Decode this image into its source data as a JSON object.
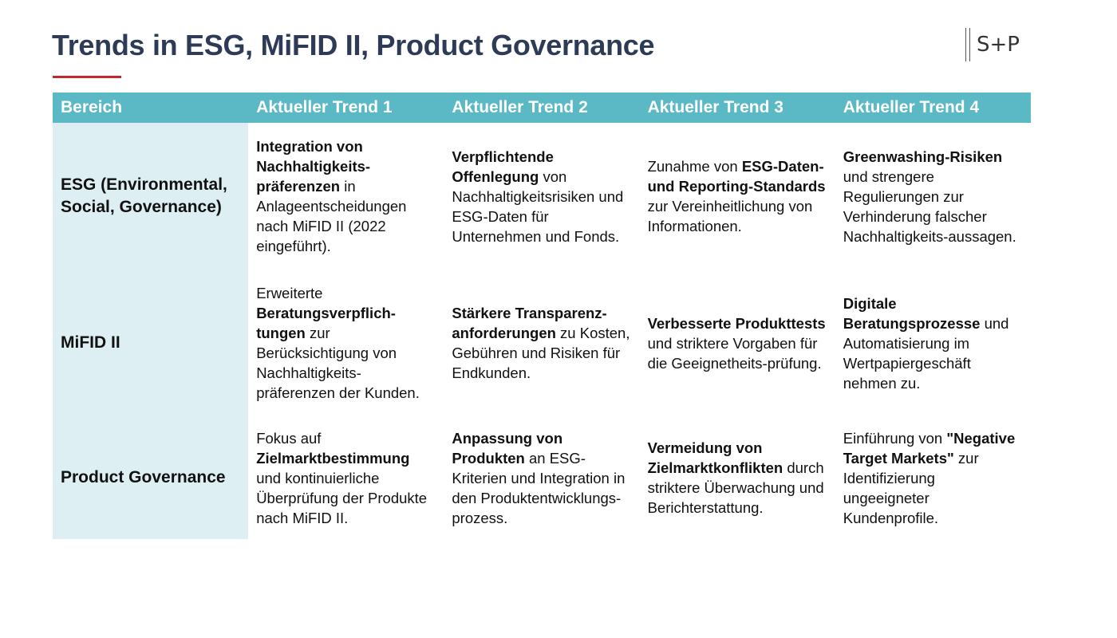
{
  "title": "Trends in ESG, MiFID II, Product Governance",
  "logo": "S+P",
  "colors": {
    "title": "#2e3b57",
    "accent_underline": "#c0282d",
    "header_bg": "#5bb8c5",
    "area_bg": "#deeff3"
  },
  "table": {
    "headers": [
      "Bereich",
      "Aktueller Trend 1",
      "Aktueller Trend 2",
      "Aktueller Trend 3",
      "Aktueller Trend 4"
    ],
    "rows": [
      {
        "area": "ESG (Environmental, Social, Governance)",
        "trends": [
          {
            "bold": "Integration von Nachhaltigkeits-präferenzen",
            "text": " in Anlageentscheidungen nach MiFID II (2022 eingeführt)."
          },
          {
            "bold": "Verpflichtende Offenlegung",
            "text": " von Nachhaltigkeitsrisiken und ESG-Daten für Unternehmen und Fonds."
          },
          {
            "pre": "Zunahme von ",
            "bold": "ESG-Daten- und Reporting-Standards",
            "text": " zur Vereinheitlichung von Informationen."
          },
          {
            "bold": "Greenwashing-Risiken",
            "text": " und strengere Regulierungen zur Verhinderung falscher Nachhaltigkeits-aussagen."
          }
        ]
      },
      {
        "area": "MiFID II",
        "trends": [
          {
            "pre": "Erweiterte ",
            "bold": "Beratungsverpflich-tungen",
            "text": " zur Berücksichtigung von Nachhaltigkeits-präferenzen der Kunden."
          },
          {
            "bold": "Stärkere Transparenz-anforderungen",
            "text": " zu Kosten, Gebühren und Risiken für Endkunden."
          },
          {
            "bold": "Verbesserte Produkttests",
            "text": " und striktere Vorgaben für die Geeignetheits-prüfung."
          },
          {
            "bold": "Digitale Beratungsprozesse",
            "text": " und Automatisierung im Wertpapiergeschäft nehmen zu."
          }
        ]
      },
      {
        "area": "Product Governance",
        "trends": [
          {
            "pre": "Fokus auf ",
            "bold": "Zielmarktbestimmung",
            "text": " und kontinuierliche Überprüfung der Produkte nach MiFID II."
          },
          {
            "bold": "Anpassung von Produkten",
            "text": " an ESG-Kriterien und Integration in den Produktentwicklungs-prozess."
          },
          {
            "bold": "Vermeidung von Zielmarktkonflikten",
            "text": " durch striktere Überwachung und Berichterstattung."
          },
          {
            "pre": "Einführung von ",
            "bold": "\"Negative Target Markets\"",
            "text": " zur Identifizierung ungeeigneter Kundenprofile."
          }
        ]
      }
    ]
  }
}
